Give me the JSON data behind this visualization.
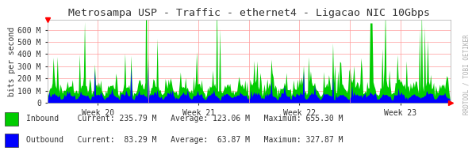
{
  "title": "Metrosampa USP - Traffic - ethernet4 - Ligacao NIC 10Gbps",
  "ylabel": "bits per second",
  "xlabel_ticks": [
    "Week 20",
    "Week 21",
    "Week 22",
    "Week 23"
  ],
  "ytick_labels": [
    "0",
    "100 M",
    "200 M",
    "300 M",
    "400 M",
    "500 M",
    "600 M"
  ],
  "ytick_values": [
    0,
    100000000,
    200000000,
    300000000,
    400000000,
    500000000,
    600000000
  ],
  "ymax": 680000000,
  "inbound_color": "#00cc00",
  "outbound_color": "#0000ff",
  "bg_color": "#ffffff",
  "plot_bg_color": "#ffffff",
  "grid_color": "#ff9999",
  "title_color": "#333333",
  "legend": [
    {
      "label": "Inbound",
      "current": "235.79 M",
      "average": "123.06 M",
      "maximum": "655.30 M",
      "color": "#00cc00"
    },
    {
      "label": "Outbound",
      "current": " 83.29 M",
      "average": " 63.87 M",
      "maximum": "327.87 M",
      "color": "#0000ff"
    }
  ],
  "watermark": "RRDTOOL / TOBI OETIKER",
  "num_points": 400,
  "seed": 42
}
